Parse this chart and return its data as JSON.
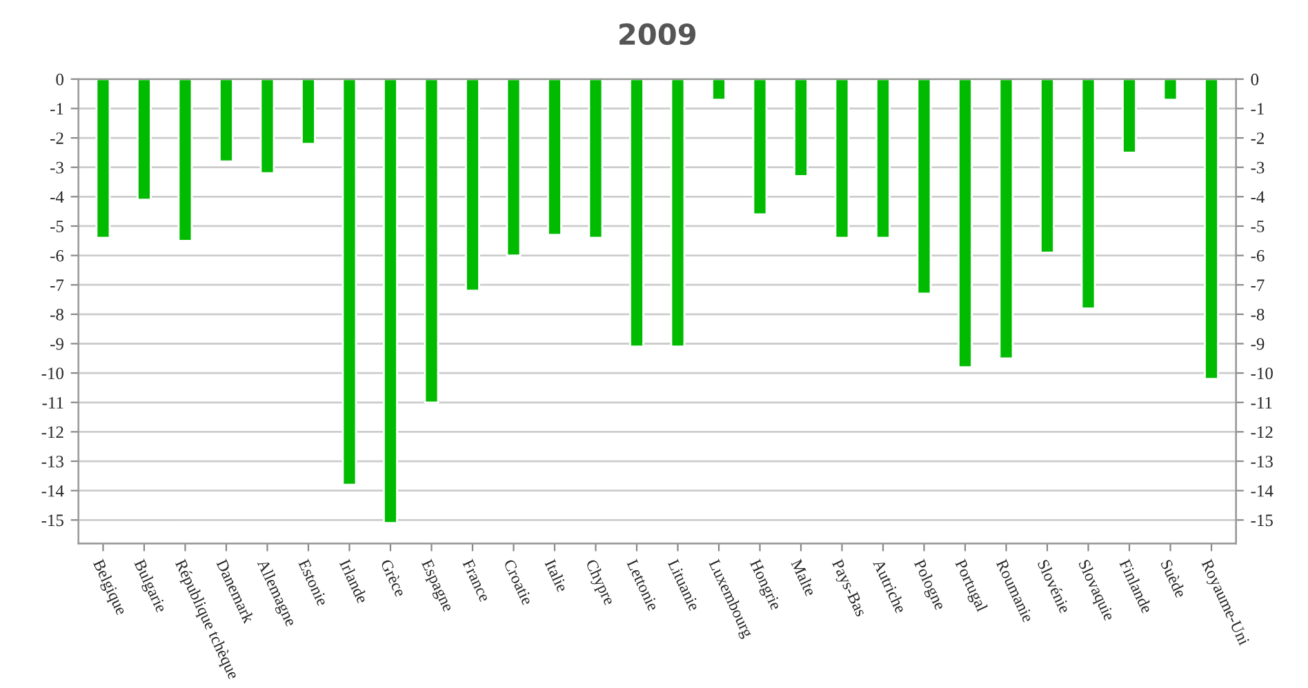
{
  "chart_data": {
    "type": "bar",
    "title": "2009",
    "categories": [
      "Belgique",
      "Bulgarie",
      "République tchèque",
      "Danemark",
      "Allemagne",
      "Estonie",
      "Irlande",
      "Grèce",
      "Espagne",
      "France",
      "Croatie",
      "Italie",
      "Chypre",
      "Lettonie",
      "Lituanie",
      "Luxembourg",
      "Hongrie",
      "Malte",
      "Pays-Bas",
      "Autriche",
      "Pologne",
      "Portugal",
      "Roumanie",
      "Slovénie",
      "Slovaquie",
      "Finlande",
      "Suède",
      "Royaume-Uni"
    ],
    "values": [
      -5.4,
      -4.1,
      -5.5,
      -2.8,
      -3.2,
      -2.2,
      -13.8,
      -15.1,
      -11.0,
      -7.2,
      -6.0,
      -5.3,
      -5.4,
      -9.1,
      -9.1,
      -0.7,
      -4.6,
      -3.3,
      -5.4,
      -5.4,
      -7.3,
      -9.8,
      -9.5,
      -5.9,
      -7.8,
      -2.5,
      -0.7,
      -10.2
    ],
    "color": "#00bb00",
    "ylim": [
      -15.8,
      0
    ],
    "yticks": [
      0,
      -1,
      -2,
      -3,
      -4,
      -5,
      -6,
      -7,
      -8,
      -9,
      -10,
      -11,
      -12,
      -13,
      -14,
      -15
    ],
    "y2lim": [
      -15.8,
      0
    ],
    "y2ticks": [
      0,
      -1,
      -2,
      -3,
      -4,
      -5,
      -6,
      -7,
      -8,
      -9,
      -10,
      -11,
      -12,
      -13,
      -14,
      -15
    ],
    "grid": "y",
    "legend": false
  }
}
